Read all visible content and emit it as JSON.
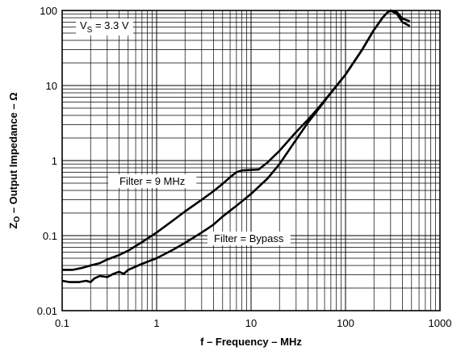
{
  "chart_data": {
    "type": "line",
    "x_scale": "log",
    "y_scale": "log",
    "xlim": [
      0.1,
      1000
    ],
    "ylim": [
      0.01,
      100
    ],
    "grid": true,
    "xlabel": "f – Frequency – MHz",
    "ylabel_main": "Z",
    "ylabel_sub": "O",
    "ylabel_rest": " – Output Impedance – Ω",
    "x_ticks": [
      0.1,
      1,
      10,
      100,
      1000
    ],
    "x_tick_labels": [
      "0.1",
      "1",
      "10",
      "100",
      "1000"
    ],
    "y_ticks": [
      0.01,
      0.1,
      1,
      10,
      100
    ],
    "y_tick_labels": [
      "0.01",
      "0.1",
      "1",
      "10",
      "100"
    ],
    "annotation": {
      "prefix": "V",
      "sub": "S",
      "suffix": " = 3.3 V"
    },
    "series": [
      {
        "name": "Filter = 9 MHz",
        "points": [
          [
            0.1,
            0.035
          ],
          [
            0.13,
            0.035
          ],
          [
            0.16,
            0.037
          ],
          [
            0.2,
            0.04
          ],
          [
            0.25,
            0.043
          ],
          [
            0.3,
            0.048
          ],
          [
            0.4,
            0.055
          ],
          [
            0.5,
            0.063
          ],
          [
            0.7,
            0.082
          ],
          [
            1,
            0.11
          ],
          [
            1.5,
            0.16
          ],
          [
            2,
            0.21
          ],
          [
            3,
            0.3
          ],
          [
            4,
            0.39
          ],
          [
            5,
            0.49
          ],
          [
            6,
            0.6
          ],
          [
            7,
            0.7
          ],
          [
            8,
            0.74
          ],
          [
            10,
            0.75
          ],
          [
            12,
            0.76
          ],
          [
            15,
            0.95
          ],
          [
            20,
            1.35
          ],
          [
            30,
            2.4
          ],
          [
            40,
            3.5
          ],
          [
            50,
            4.8
          ],
          [
            70,
            8
          ],
          [
            100,
            14
          ],
          [
            150,
            30
          ],
          [
            200,
            55
          ],
          [
            250,
            82
          ],
          [
            280,
            95
          ],
          [
            300,
            100
          ],
          [
            350,
            95
          ],
          [
            400,
            78
          ],
          [
            480,
            72
          ]
        ]
      },
      {
        "name": "Filter = Bypass",
        "points": [
          [
            0.1,
            0.025
          ],
          [
            0.12,
            0.024
          ],
          [
            0.15,
            0.024
          ],
          [
            0.18,
            0.025
          ],
          [
            0.2,
            0.024
          ],
          [
            0.22,
            0.027
          ],
          [
            0.25,
            0.029
          ],
          [
            0.3,
            0.028
          ],
          [
            0.35,
            0.031
          ],
          [
            0.4,
            0.033
          ],
          [
            0.45,
            0.031
          ],
          [
            0.5,
            0.035
          ],
          [
            0.7,
            0.042
          ],
          [
            1,
            0.05
          ],
          [
            1.5,
            0.065
          ],
          [
            2,
            0.08
          ],
          [
            3,
            0.11
          ],
          [
            4,
            0.14
          ],
          [
            5,
            0.18
          ],
          [
            7,
            0.25
          ],
          [
            10,
            0.36
          ],
          [
            15,
            0.58
          ],
          [
            20,
            0.9
          ],
          [
            30,
            1.9
          ],
          [
            40,
            3.2
          ],
          [
            50,
            4.6
          ],
          [
            70,
            8
          ],
          [
            100,
            14
          ],
          [
            150,
            30
          ],
          [
            200,
            55
          ],
          [
            250,
            82
          ],
          [
            280,
            95
          ],
          [
            300,
            100
          ],
          [
            350,
            90
          ],
          [
            400,
            70
          ],
          [
            480,
            62
          ]
        ]
      }
    ]
  }
}
